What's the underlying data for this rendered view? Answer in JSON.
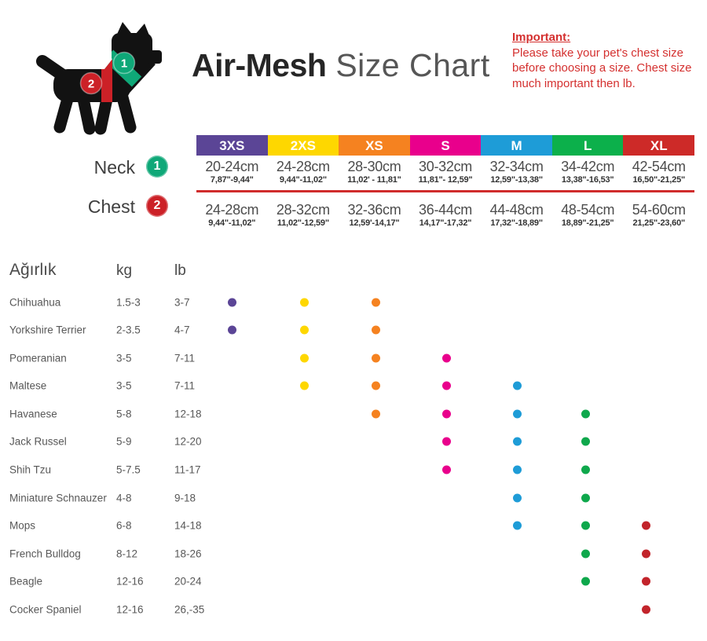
{
  "header": {
    "title_bold": "Air-Mesh",
    "title_light": " Size Chart",
    "note": {
      "heading": "Important:",
      "lines": [
        "Please take your pet's chest size",
        "before choosing a size. Chest size",
        "much important then lb."
      ]
    }
  },
  "measurements": {
    "neck_label": "Neck",
    "neck_badge": "1",
    "chest_label": "Chest",
    "chest_badge": "2"
  },
  "sizes": [
    {
      "label": "3XS",
      "color": "#5b4596",
      "dot_color": "#5b4596",
      "neck_cm": "20-24cm",
      "neck_in": "7,87\"-9,44\"",
      "chest_cm": "24-28cm",
      "chest_in": "9,44\"-11,02\""
    },
    {
      "label": "2XS",
      "color": "#fed700",
      "dot_color": "#fed700",
      "neck_cm": "24-28cm",
      "neck_in": "9,44\"-11,02\"",
      "chest_cm": "28-32cm",
      "chest_in": "11,02\"-12,59\""
    },
    {
      "label": "XS",
      "color": "#f58220",
      "dot_color": "#f58220",
      "neck_cm": "28-30cm",
      "neck_in": "11,02' - 11,81\"",
      "chest_cm": "32-36cm",
      "chest_in": "12,59'-14,17\""
    },
    {
      "label": "S",
      "color": "#e9008c",
      "dot_color": "#e9008c",
      "neck_cm": "30-32cm",
      "neck_in": "11,81\"- 12,59\"",
      "chest_cm": "36-44cm",
      "chest_in": "14,17\"-17,32\""
    },
    {
      "label": "M",
      "color": "#1e9cd7",
      "dot_color": "#1e9cd7",
      "neck_cm": "32-34cm",
      "neck_in": "12,59\"-13,38\"",
      "chest_cm": "44-48cm",
      "chest_in": "17,32\"-18,89\""
    },
    {
      "label": "L",
      "color": "#0cb04b",
      "dot_color": "#0fa84c",
      "neck_cm": "34-42cm",
      "neck_in": "13,38\"-16,53\"",
      "chest_cm": "48-54cm",
      "chest_in": "18,89\"-21,25\""
    },
    {
      "label": "XL",
      "color": "#cd2a28",
      "dot_color": "#c2242b",
      "neck_cm": "42-54cm",
      "neck_in": "16,50\"-21,25\"",
      "chest_cm": "54-60cm",
      "chest_in": "21,25\"-23,60\""
    }
  ],
  "breed_table": {
    "headers": {
      "weight": "Ağırlık",
      "kg": "kg",
      "lb": "lb"
    },
    "rows": [
      {
        "name": "Chihuahua",
        "kg": "1.5-3",
        "lb": "3-7",
        "sizes": [
          "3XS",
          "2XS",
          "XS"
        ]
      },
      {
        "name": "Yorkshire Terrier",
        "kg": "2-3.5",
        "lb": "4-7",
        "sizes": [
          "3XS",
          "2XS",
          "XS"
        ]
      },
      {
        "name": "Pomeranian",
        "kg": "3-5",
        "lb": "7-11",
        "sizes": [
          "2XS",
          "XS",
          "S"
        ]
      },
      {
        "name": "Maltese",
        "kg": "3-5",
        "lb": "7-11",
        "sizes": [
          "2XS",
          "XS",
          "S",
          "M"
        ]
      },
      {
        "name": "Havanese",
        "kg": "5-8",
        "lb": "12-18",
        "sizes": [
          "XS",
          "S",
          "M",
          "L"
        ]
      },
      {
        "name": "Jack Russel",
        "kg": "5-9",
        "lb": "12-20",
        "sizes": [
          "S",
          "M",
          "L"
        ]
      },
      {
        "name": "Shih Tzu",
        "kg": "5-7.5",
        "lb": "11-17",
        "sizes": [
          "S",
          "M",
          "L"
        ]
      },
      {
        "name": "Miniature Schnauzer",
        "kg": "4-8",
        "lb": "9-18",
        "sizes": [
          "M",
          "L"
        ]
      },
      {
        "name": "Mops",
        "kg": "6-8",
        "lb": "14-18",
        "sizes": [
          "M",
          "L",
          "XL"
        ]
      },
      {
        "name": "French Bulldog",
        "kg": "8-12",
        "lb": "18-26",
        "sizes": [
          "L",
          "XL"
        ]
      },
      {
        "name": "Beagle",
        "kg": "12-16",
        "lb": "20-24",
        "sizes": [
          "L",
          "XL"
        ]
      },
      {
        "name": "Cocker Spaniel",
        "kg": "12-16",
        "lb": "26,-35",
        "sizes": [
          "XL"
        ]
      }
    ]
  },
  "palette": {
    "badge_neck_green": "#0fa878",
    "badge_chest_red": "#cc2127",
    "divider_red": "#d02c2c",
    "note_red": "#d4302f",
    "title_dark": "#262626",
    "title_light": "#565656",
    "dog_black": "#121212"
  },
  "chart_data": {
    "type": "table",
    "title": "Air-Mesh Size Chart",
    "columns": [
      "3XS",
      "2XS",
      "XS",
      "S",
      "M",
      "L",
      "XL"
    ],
    "neck_cm": [
      "20-24",
      "24-28",
      "28-30",
      "30-32",
      "32-34",
      "34-42",
      "42-54"
    ],
    "chest_cm": [
      "24-28",
      "28-32",
      "32-36",
      "36-44",
      "44-48",
      "48-54",
      "54-60"
    ],
    "rows": [
      {
        "breed": "Chihuahua",
        "kg": "1.5-3",
        "lb": "3-7",
        "fits": [
          "3XS",
          "2XS",
          "XS"
        ]
      },
      {
        "breed": "Yorkshire Terrier",
        "kg": "2-3.5",
        "lb": "4-7",
        "fits": [
          "3XS",
          "2XS",
          "XS"
        ]
      },
      {
        "breed": "Pomeranian",
        "kg": "3-5",
        "lb": "7-11",
        "fits": [
          "2XS",
          "XS",
          "S"
        ]
      },
      {
        "breed": "Maltese",
        "kg": "3-5",
        "lb": "7-11",
        "fits": [
          "2XS",
          "XS",
          "S",
          "M"
        ]
      },
      {
        "breed": "Havanese",
        "kg": "5-8",
        "lb": "12-18",
        "fits": [
          "XS",
          "S",
          "M",
          "L"
        ]
      },
      {
        "breed": "Jack Russel",
        "kg": "5-9",
        "lb": "12-20",
        "fits": [
          "S",
          "M",
          "L"
        ]
      },
      {
        "breed": "Shih Tzu",
        "kg": "5-7.5",
        "lb": "11-17",
        "fits": [
          "S",
          "M",
          "L"
        ]
      },
      {
        "breed": "Miniature Schnauzer",
        "kg": "4-8",
        "lb": "9-18",
        "fits": [
          "M",
          "L"
        ]
      },
      {
        "breed": "Mops",
        "kg": "6-8",
        "lb": "14-18",
        "fits": [
          "M",
          "L",
          "XL"
        ]
      },
      {
        "breed": "French Bulldog",
        "kg": "8-12",
        "lb": "18-26",
        "fits": [
          "L",
          "XL"
        ]
      },
      {
        "breed": "Beagle",
        "kg": "12-16",
        "lb": "20-24",
        "fits": [
          "L",
          "XL"
        ]
      },
      {
        "breed": "Cocker Spaniel",
        "kg": "12-16",
        "lb": "26,-35",
        "fits": [
          "XL"
        ]
      }
    ]
  }
}
